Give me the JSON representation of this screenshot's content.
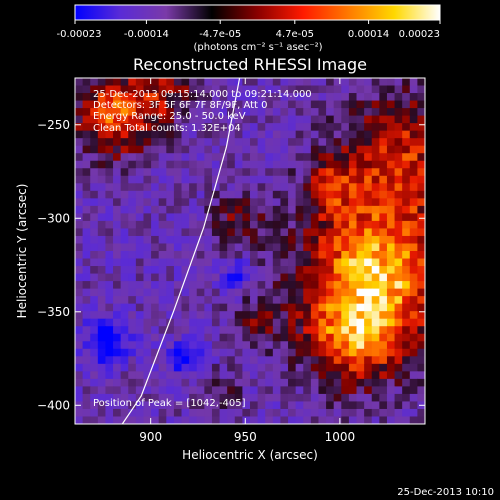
{
  "colorbar": {
    "ticks": [
      "-0.00023",
      "-0.00014",
      "-4.7e-05",
      "4.7e-05",
      "0.00014",
      "0.00023"
    ],
    "tick_values": [
      -0.00023,
      -0.00014,
      -4.7e-05,
      4.7e-05,
      0.00014,
      0.00023
    ],
    "range": [
      -0.00023,
      0.00023
    ],
    "units_label": "(photons cm⁻² s⁻¹ asec⁻²)",
    "stops": [
      "#0000ff",
      "#5a2bd6",
      "#7a3aa8",
      "#000000",
      "#8a0000",
      "#ff1a00",
      "#ff7a00",
      "#ffd800",
      "#ffffff"
    ]
  },
  "chart_data": {
    "type": "heatmap",
    "title": "Reconstructed RHESSI Image",
    "xlabel": "Heliocentric X (arcsec)",
    "ylabel": "Heliocentric Y (arcsec)",
    "xlim": [
      860,
      1045
    ],
    "ylim": [
      -410,
      -225
    ],
    "xticks": [
      "900",
      "950",
      "1000"
    ],
    "xtick_values": [
      900,
      950,
      1000
    ],
    "yticks": [
      "-250",
      "-300",
      "-350",
      "-400"
    ],
    "ytick_values": [
      -250,
      -300,
      -350,
      -400
    ],
    "annotations": [
      "25-Dec-2013 09:15:14.000 to 09:21:14.000",
      "Detectors: 3F 5F 6F 7F 8F/9F, Att 0",
      "Energy Range: 25.0 - 50.0 keV",
      "Clean    Total counts: 1.32E+04"
    ],
    "peak_label": "Position of Peak = [1042,-405]",
    "limb_line": [
      [
        947,
        -225
      ],
      [
        940,
        -262
      ],
      [
        928,
        -305
      ],
      [
        912,
        -350
      ],
      [
        895,
        -395
      ],
      [
        885,
        -410
      ]
    ]
  },
  "footer": {
    "timestamp": "25-Dec-2013 10:10"
  }
}
